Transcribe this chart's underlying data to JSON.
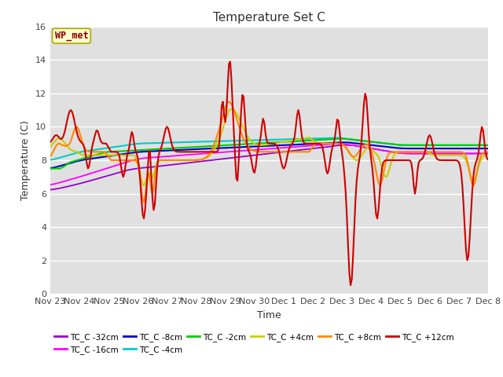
{
  "title": "Temperature Set C",
  "xlabel": "Time",
  "ylabel": "Temperature (C)",
  "ylim": [
    0,
    16
  ],
  "yticks": [
    0,
    2,
    4,
    6,
    8,
    10,
    12,
    14,
    16
  ],
  "bg_color": "#e0e0e0",
  "fig_color": "#ffffff",
  "annotation_text": "WP_met",
  "annotation_color": "#8b0000",
  "annotation_bg": "#ffffcc",
  "series": [
    {
      "label": "TC_C -32cm",
      "color": "#9900cc",
      "lw": 1.3
    },
    {
      "label": "TC_C -16cm",
      "color": "#ff00ff",
      "lw": 1.3
    },
    {
      "label": "TC_C -8cm",
      "color": "#0000cc",
      "lw": 1.5
    },
    {
      "label": "TC_C -4cm",
      "color": "#00cccc",
      "lw": 1.5
    },
    {
      "label": "TC_C -2cm",
      "color": "#00cc00",
      "lw": 1.5
    },
    {
      "label": "TC_C +4cm",
      "color": "#cccc00",
      "lw": 1.5
    },
    {
      "label": "TC_C +8cm",
      "color": "#ff8800",
      "lw": 1.5
    },
    {
      "label": "TC_C +12cm",
      "color": "#cc0000",
      "lw": 1.5
    }
  ],
  "xtick_labels": [
    "Nov 23",
    "Nov 24",
    "Nov 25",
    "Nov 26",
    "Nov 27",
    "Nov 28",
    "Nov 29",
    "Nov 30",
    "Dec 1",
    "Dec 2",
    "Dec 3",
    "Dec 4",
    "Dec 5",
    "Dec 6",
    "Dec 7",
    "Dec 8"
  ],
  "n_points": 361
}
